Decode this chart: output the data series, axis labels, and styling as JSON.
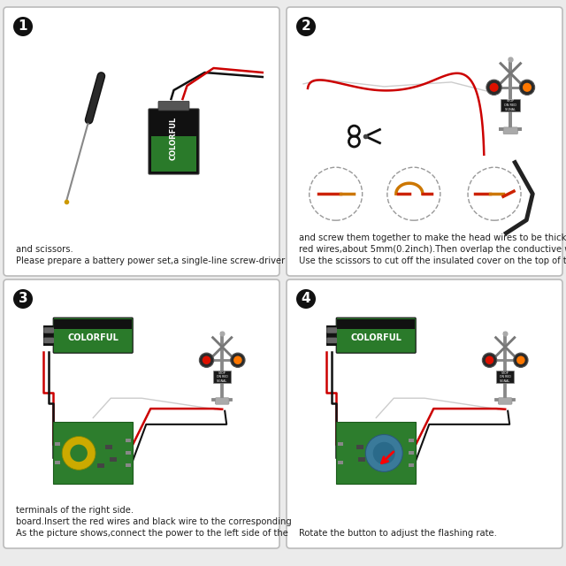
{
  "bg_color": "#ebebeb",
  "border_color": "#bbbbbb",
  "panel_bg": "#ffffff",
  "step_numbers": [
    "1",
    "2",
    "3",
    "4"
  ],
  "step_texts": [
    "Please prepare a battery power set,a single-line screw-driver\nand scissors.",
    "Use the scissors to cut off the insulated cover on the top of the\nred wires,about 5mm(0.2inch).Then overlap the conductive wire\nand screw them together to make the head wires to be thicker.",
    "As the picture shows,connect the power to the left side of the\nboard.Insert the red wires and black wire to the corresponding\nterminals of the right side.",
    "Rotate the button to adjust the flashing rate."
  ],
  "step_badge_color": "#111111",
  "battery_green": "#2a7a2a",
  "battery_black": "#111111",
  "battery_text": "COLORFUL",
  "circuit_board_color": "#2d7d2d",
  "wire_red": "#cc0000",
  "wire_black": "#111111",
  "wire_white": "#cccccc",
  "wire_thick_black": "#222222",
  "signal_dark": "#2a2a2a",
  "signal_grey": "#888888",
  "signal_led_red": "#dd1100",
  "signal_led_orange": "#ff7700",
  "stop_sign_bg": "#1a1a1a",
  "scissors_color": "#222222",
  "toroid_color": "#ccaa00",
  "toroid_dark": "#888800",
  "font_size_text": 7.2,
  "font_size_badge": 11,
  "font_size_battery": 7,
  "font_size_stop": 3.5
}
